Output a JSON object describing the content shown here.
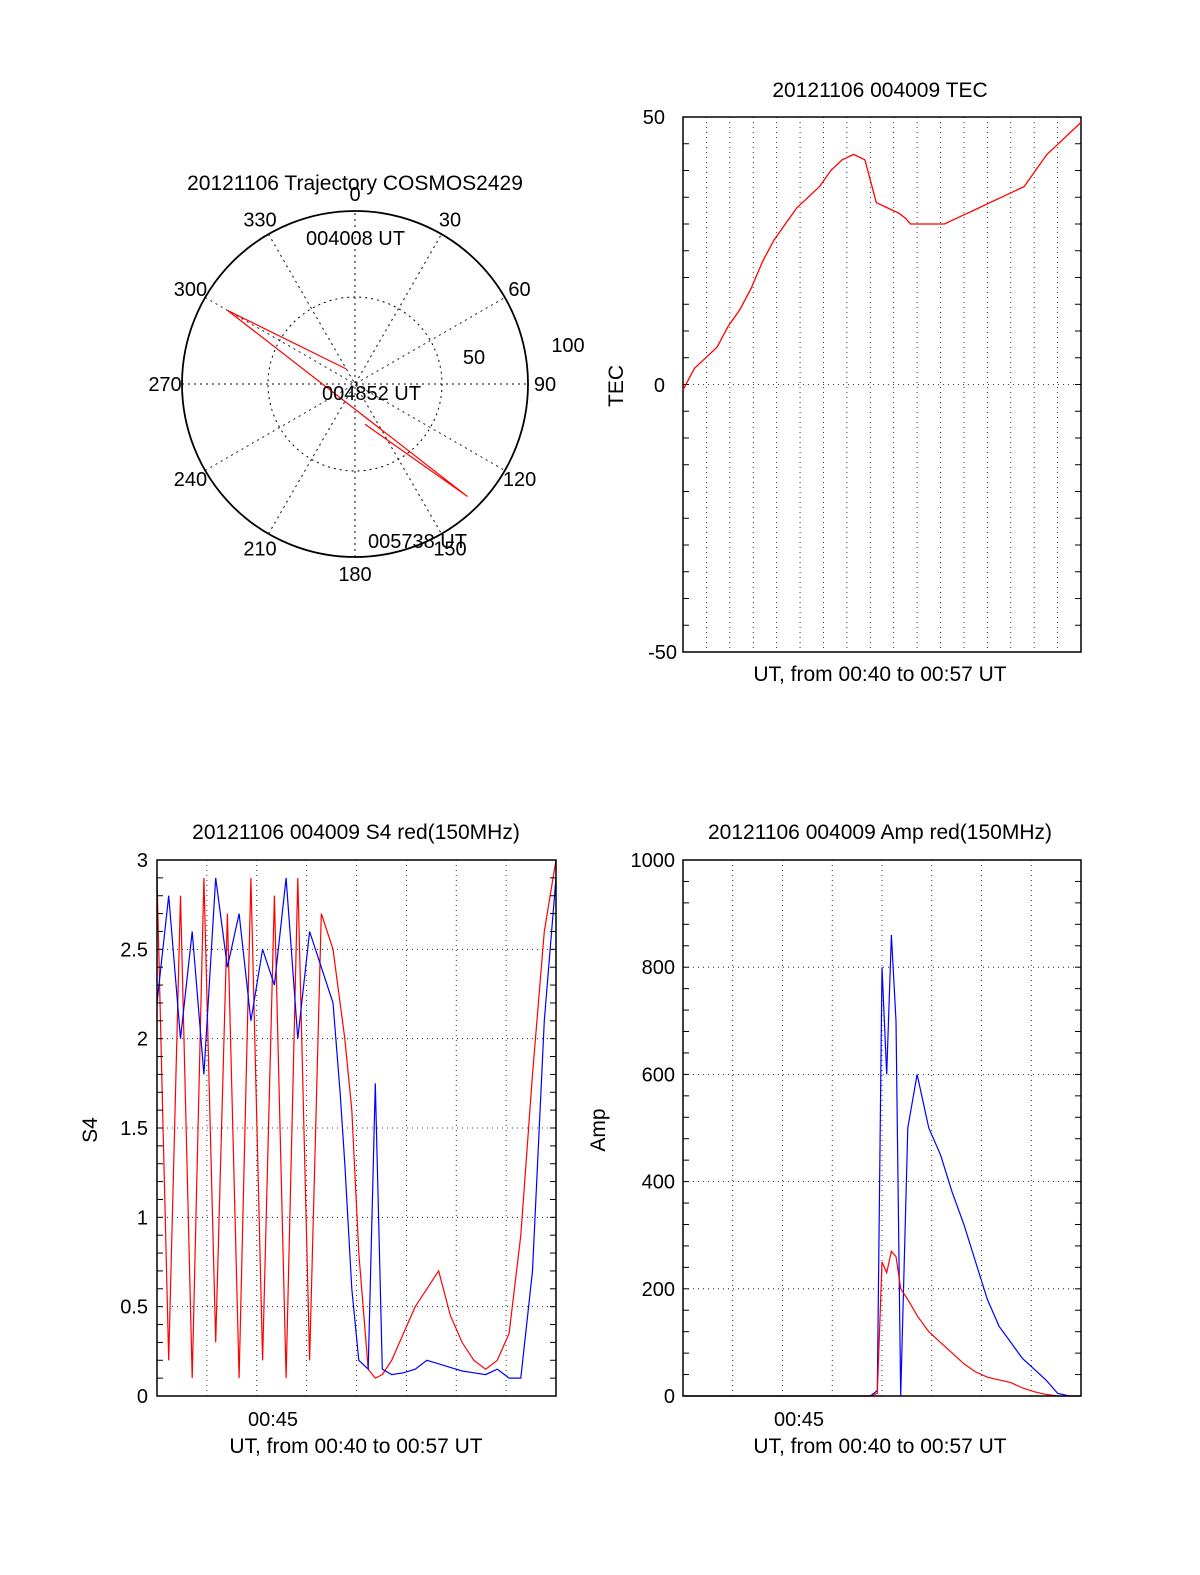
{
  "chart_data": [
    {
      "type": "polar",
      "title": "20121106 Trajectory COSMOS2429",
      "azimuth_labels": [
        "0",
        "30",
        "60",
        "90",
        "120",
        "150",
        "180",
        "210",
        "240",
        "270",
        "300",
        "330"
      ],
      "elevation_ring_labels": [
        "50",
        "100"
      ],
      "annotations": [
        "004008 UT",
        "004852 UT",
        "005738 UT"
      ],
      "series": [
        {
          "color": "#ff0000",
          "points": [
            [
              330,
              10
            ],
            [
              300,
              85
            ],
            [
              135,
              92
            ],
            [
              166,
              24
            ]
          ]
        }
      ],
      "rlim": [
        0,
        100
      ],
      "grid": true
    },
    {
      "type": "line",
      "title": "20121106 004009 TEC",
      "xlabel": "UT, from 00:40 to 00:57 UT",
      "ylabel": "TEC",
      "xlim": [
        0,
        17.5
      ],
      "ylim": [
        -50,
        50
      ],
      "yticks": [
        "-50",
        "0",
        "50"
      ],
      "grid": true,
      "series": [
        {
          "color": "#ff0000",
          "x": [
            0,
            0.5,
            1,
            1.5,
            2,
            2.5,
            3,
            3.5,
            4,
            4.5,
            5,
            5.5,
            6,
            6.5,
            7,
            7.5,
            8,
            8.5,
            9,
            9.5,
            9.8,
            10,
            10.5,
            11,
            11.5,
            12,
            12.5,
            13,
            13.5,
            14,
            14.5,
            15,
            15.5,
            16,
            16.5,
            17,
            17.5
          ],
          "y": [
            -1,
            3,
            5,
            7,
            11,
            14,
            18,
            23,
            27,
            30,
            33,
            35,
            37,
            40,
            42,
            43,
            42,
            34,
            33,
            32,
            31,
            30,
            30,
            30,
            30,
            31,
            32,
            33,
            34,
            35,
            36,
            37,
            40,
            43,
            45,
            47,
            49
          ]
        }
      ]
    },
    {
      "type": "line",
      "title": "20121106 004009 S4 red(150MHz)",
      "xlabel": "UT, from 00:40 to 00:57 UT",
      "ylabel": "S4",
      "xlim": [
        0,
        17
      ],
      "ylim": [
        0,
        3
      ],
      "yticks": [
        "0",
        "0.5",
        "1",
        "1.5",
        "2",
        "2.5",
        "3"
      ],
      "xticks": [
        "00:45"
      ],
      "grid": true,
      "series": [
        {
          "color": "#0000ff",
          "x": [
            0,
            0.5,
            1,
            1.5,
            2,
            2.5,
            3,
            3.5,
            4,
            4.5,
            5,
            5.5,
            6,
            6.5,
            7,
            7.5,
            7.8,
            8,
            8.3,
            8.6,
            9,
            9.3,
            9.6,
            10,
            10.5,
            11,
            11.5,
            12,
            12.5,
            13,
            13.5,
            14,
            14.5,
            15,
            15.5,
            16,
            16.5,
            17
          ],
          "y": [
            2.2,
            2.8,
            2.0,
            2.6,
            1.8,
            2.9,
            2.4,
            2.7,
            2.1,
            2.5,
            2.3,
            2.9,
            2.0,
            2.6,
            2.4,
            2.2,
            1.7,
            1.3,
            0.6,
            0.2,
            0.15,
            1.75,
            0.15,
            0.12,
            0.13,
            0.15,
            0.2,
            0.18,
            0.16,
            0.14,
            0.13,
            0.12,
            0.15,
            0.1,
            0.1,
            0.7,
            2.1,
            2.9
          ]
        },
        {
          "color": "#ff0000",
          "x": [
            0,
            0.5,
            1,
            1.5,
            2,
            2.5,
            3,
            3.5,
            4,
            4.5,
            5,
            5.5,
            6,
            6.5,
            7,
            7.5,
            7.8,
            8,
            8.3,
            8.6,
            9,
            9.3,
            9.6,
            10,
            10.5,
            11,
            11.5,
            12,
            12.5,
            13,
            13.5,
            14,
            14.5,
            15,
            15.5,
            16,
            16.5,
            17
          ],
          "y": [
            2.9,
            0.2,
            2.8,
            0.1,
            2.9,
            0.3,
            2.7,
            0.1,
            2.9,
            0.2,
            2.8,
            0.1,
            2.9,
            0.2,
            2.7,
            2.5,
            2.2,
            2.0,
            1.6,
            0.8,
            0.15,
            0.1,
            0.12,
            0.2,
            0.35,
            0.5,
            0.6,
            0.7,
            0.45,
            0.3,
            0.2,
            0.15,
            0.2,
            0.35,
            0.9,
            1.8,
            2.6,
            3.0
          ]
        }
      ]
    },
    {
      "type": "line",
      "title": "20121106 004009 Amp red(150MHz)",
      "xlabel": "UT, from 00:40 to 00:57 UT",
      "ylabel": "Amp",
      "xlim": [
        0,
        17
      ],
      "ylim": [
        0,
        1000
      ],
      "yticks": [
        "0",
        "200",
        "400",
        "600",
        "800",
        "1000"
      ],
      "xticks": [
        "00:45"
      ],
      "grid": true,
      "series": [
        {
          "color": "#0000ff",
          "x": [
            0,
            4,
            8,
            8.3,
            8.5,
            8.7,
            8.9,
            9.1,
            9.3,
            9.6,
            10,
            10.5,
            11,
            11.5,
            12,
            12.5,
            13,
            13.5,
            14,
            14.5,
            15,
            15.5,
            16,
            16.5,
            17
          ],
          "y": [
            0,
            0,
            0,
            10,
            800,
            600,
            860,
            700,
            0,
            500,
            600,
            500,
            450,
            380,
            320,
            250,
            180,
            130,
            100,
            70,
            50,
            30,
            5,
            0,
            0
          ]
        },
        {
          "color": "#ff0000",
          "x": [
            0,
            4,
            8,
            8.3,
            8.5,
            8.7,
            8.9,
            9.1,
            9.3,
            9.6,
            10,
            10.5,
            11,
            11.5,
            12,
            12.5,
            13,
            13.5,
            14,
            14.5,
            15,
            15.5,
            16,
            16.5,
            17
          ],
          "y": [
            0,
            0,
            0,
            5,
            250,
            230,
            270,
            260,
            200,
            180,
            150,
            120,
            100,
            80,
            60,
            45,
            35,
            30,
            25,
            15,
            8,
            3,
            0,
            0,
            0
          ]
        }
      ]
    }
  ]
}
